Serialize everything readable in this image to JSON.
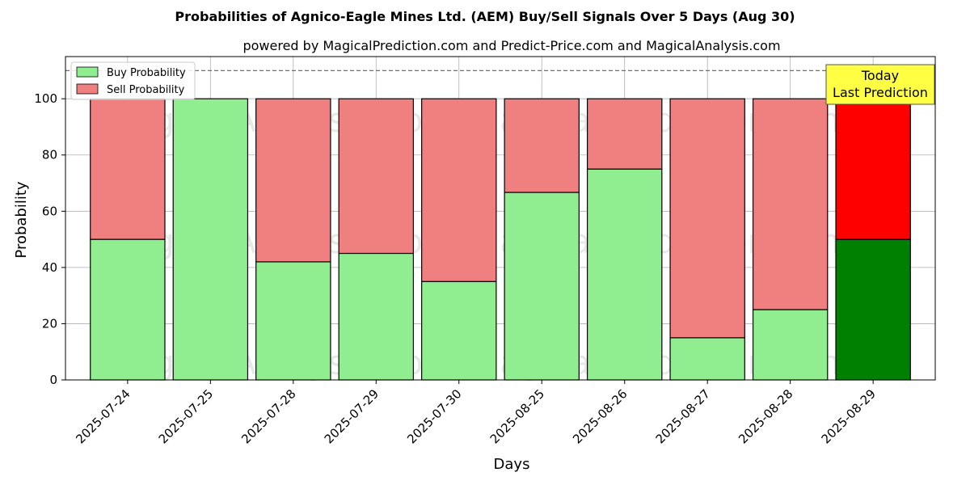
{
  "chart_data": {
    "type": "bar",
    "stacked": true,
    "title": "Probabilities of Agnico-Eagle Mines Ltd. (AEM) Buy/Sell Signals Over 5 Days (Aug 30)",
    "subtitle": "powered by MagicalPrediction.com and Predict-Price.com and MagicalAnalysis.com",
    "xlabel": "Days",
    "ylabel": "Probability",
    "ylim": [
      0,
      115
    ],
    "yticks": [
      0,
      20,
      40,
      60,
      80,
      100
    ],
    "grid": true,
    "reference_line": 110,
    "categories": [
      "2025-07-24",
      "2025-07-25",
      "2025-07-28",
      "2025-07-29",
      "2025-07-30",
      "2025-08-25",
      "2025-08-26",
      "2025-08-27",
      "2025-08-28",
      "2025-08-29"
    ],
    "series": [
      {
        "name": "Buy Probability",
        "color": "#90ee90",
        "highlight_color": "#008000",
        "values": [
          50,
          100,
          42,
          45,
          35,
          66.7,
          75,
          15,
          25,
          50
        ]
      },
      {
        "name": "Sell Probability",
        "color": "#f08080",
        "highlight_color": "#ff0000",
        "values": [
          50,
          0,
          58,
          55,
          65,
          33.3,
          25,
          85,
          75,
          50
        ]
      }
    ],
    "highlight_index": 9,
    "annotation": {
      "line1": "Today",
      "line2": "Last Prediction",
      "color": "#ffff44"
    },
    "legend_position": "top-left",
    "watermarks": [
      "MagicalAnalysis.com",
      "MagicalPrediction.com"
    ]
  }
}
